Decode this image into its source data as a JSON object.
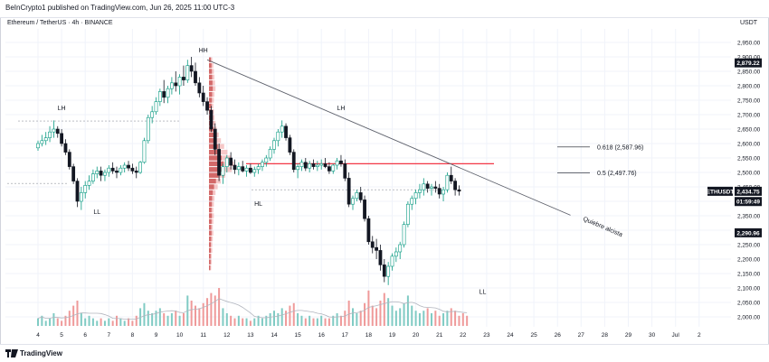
{
  "header": {
    "published_text": "BeInCrypto1 published on TradingView.com, Jun 26, 2025 11:00 UTC-3",
    "symbol_text": "Ethereum / TetherUS · 4h · BINANCE",
    "currency": "USDT"
  },
  "footer": {
    "brand": "TradingView"
  },
  "chart_data": {
    "type": "candlestick",
    "price_axis": {
      "min": 2000,
      "max": 2950,
      "step": 50,
      "ticks": [
        "2,950.00",
        "2,900.00",
        "2,850.00",
        "2,800.00",
        "2,750.00",
        "2,700.00",
        "2,650.00",
        "2,600.00",
        "2,550.00",
        "2,500.00",
        "2,450.00",
        "2,400.00",
        "2,350.00",
        "2,300.00",
        "2,250.00",
        "2,200.00",
        "2,150.00",
        "2,100.00",
        "2,050.00",
        "2,000.00"
      ]
    },
    "time_axis": {
      "labels": [
        {
          "text": "4",
          "idx": 0
        },
        {
          "text": "5",
          "idx": 6
        },
        {
          "text": "6",
          "idx": 12
        },
        {
          "text": "7",
          "idx": 18
        },
        {
          "text": "8",
          "idx": 24
        },
        {
          "text": "9",
          "idx": 30
        },
        {
          "text": "10",
          "idx": 36
        },
        {
          "text": "11",
          "idx": 42
        },
        {
          "text": "12",
          "idx": 48
        },
        {
          "text": "13",
          "idx": 54
        },
        {
          "text": "14",
          "idx": 60
        },
        {
          "text": "15",
          "idx": 66
        },
        {
          "text": "16",
          "idx": 72
        },
        {
          "text": "17",
          "idx": 78
        },
        {
          "text": "18",
          "idx": 84
        },
        {
          "text": "19",
          "idx": 90
        },
        {
          "text": "20",
          "idx": 96
        },
        {
          "text": "21",
          "idx": 102
        },
        {
          "text": "22",
          "idx": 108
        },
        {
          "text": "23",
          "idx": 114
        },
        {
          "text": "24",
          "idx": 120
        },
        {
          "text": "25",
          "idx": 126
        },
        {
          "text": "26",
          "idx": 132
        },
        {
          "text": "27",
          "idx": 138
        },
        {
          "text": "28",
          "idx": 144
        },
        {
          "text": "29",
          "idx": 150
        },
        {
          "text": "30",
          "idx": 156
        },
        {
          "text": "Jul",
          "idx": 162
        },
        {
          "text": "2",
          "idx": 168
        }
      ]
    },
    "price_badges": [
      {
        "text": "2,879.22",
        "price": 2879.22,
        "style": "dark"
      },
      {
        "text": "ETHUSDT",
        "price": 2434.75,
        "style": "dark"
      },
      {
        "text": "2,434.75",
        "price": 2434.75,
        "style": "dark"
      },
      {
        "text": "01:59:49",
        "price": 2418,
        "style": "dark-sub"
      },
      {
        "text": "2,290.96",
        "price": 2290.96,
        "style": "dark"
      }
    ],
    "annotations": [
      {
        "text": "HH",
        "idx": 42,
        "price": 2915
      },
      {
        "text": "LH",
        "idx": 6,
        "price": 2715
      },
      {
        "text": "LL",
        "idx": 15,
        "price": 2357
      },
      {
        "text": "LH",
        "idx": 77,
        "price": 2715
      },
      {
        "text": "HL",
        "idx": 56,
        "price": 2385
      },
      {
        "text": "LL",
        "idx": 113,
        "price": 2080
      }
    ],
    "fib_levels": [
      {
        "text": "0.618 (2,587.96)",
        "price": 2587.96
      },
      {
        "text": "0.5 (2,497.76)",
        "price": 2497.76
      }
    ],
    "trendline": {
      "label": "Quiebre alcista",
      "from": {
        "idx": 43,
        "price": 2890
      },
      "to": {
        "idx": 133,
        "price": 2352
      }
    },
    "hline_red": {
      "price": 2530
    },
    "candles": [
      [
        2585,
        2610,
        2575,
        2600
      ],
      [
        2600,
        2630,
        2590,
        2610
      ],
      [
        2610,
        2640,
        2595,
        2620
      ],
      [
        2620,
        2660,
        2605,
        2640
      ],
      [
        2640,
        2680,
        2620,
        2650
      ],
      [
        2650,
        2660,
        2620,
        2635
      ],
      [
        2635,
        2650,
        2590,
        2600
      ],
      [
        2600,
        2615,
        2560,
        2570
      ],
      [
        2570,
        2580,
        2510,
        2520
      ],
      [
        2520,
        2530,
        2460,
        2470
      ],
      [
        2470,
        2480,
        2380,
        2400
      ],
      [
        2400,
        2450,
        2370,
        2430
      ],
      [
        2430,
        2470,
        2410,
        2455
      ],
      [
        2455,
        2490,
        2440,
        2470
      ],
      [
        2470,
        2510,
        2460,
        2495
      ],
      [
        2495,
        2520,
        2480,
        2505
      ],
      [
        2505,
        2520,
        2470,
        2490
      ],
      [
        2490,
        2510,
        2470,
        2500
      ],
      [
        2500,
        2525,
        2485,
        2515
      ],
      [
        2515,
        2535,
        2495,
        2505
      ],
      [
        2505,
        2520,
        2480,
        2500
      ],
      [
        2500,
        2525,
        2490,
        2515
      ],
      [
        2515,
        2535,
        2500,
        2525
      ],
      [
        2525,
        2540,
        2505,
        2515
      ],
      [
        2515,
        2530,
        2495,
        2505
      ],
      [
        2505,
        2520,
        2480,
        2500
      ],
      [
        2500,
        2540,
        2495,
        2535
      ],
      [
        2535,
        2620,
        2530,
        2610
      ],
      [
        2610,
        2700,
        2600,
        2690
      ],
      [
        2690,
        2730,
        2670,
        2710
      ],
      [
        2710,
        2760,
        2700,
        2745
      ],
      [
        2745,
        2790,
        2730,
        2780
      ],
      [
        2780,
        2820,
        2740,
        2760
      ],
      [
        2760,
        2800,
        2740,
        2790
      ],
      [
        2790,
        2830,
        2770,
        2810
      ],
      [
        2810,
        2850,
        2780,
        2800
      ],
      [
        2800,
        2840,
        2770,
        2830
      ],
      [
        2830,
        2870,
        2800,
        2820
      ],
      [
        2820,
        2890,
        2810,
        2870
      ],
      [
        2870,
        2900,
        2830,
        2850
      ],
      [
        2850,
        2880,
        2800,
        2810
      ],
      [
        2810,
        2830,
        2760,
        2775
      ],
      [
        2775,
        2800,
        2730,
        2745
      ],
      [
        2745,
        2760,
        2700,
        2715
      ],
      [
        2715,
        2730,
        2640,
        2650
      ],
      [
        2650,
        2670,
        2560,
        2580
      ],
      [
        2580,
        2600,
        2470,
        2490
      ],
      [
        2490,
        2530,
        2460,
        2520
      ],
      [
        2520,
        2560,
        2500,
        2550
      ],
      [
        2550,
        2570,
        2510,
        2525
      ],
      [
        2525,
        2545,
        2495,
        2510
      ],
      [
        2510,
        2535,
        2490,
        2520
      ],
      [
        2520,
        2540,
        2500,
        2505
      ],
      [
        2505,
        2525,
        2485,
        2515
      ],
      [
        2515,
        2530,
        2495,
        2500
      ],
      [
        2500,
        2520,
        2485,
        2510
      ],
      [
        2510,
        2530,
        2495,
        2520
      ],
      [
        2520,
        2545,
        2505,
        2535
      ],
      [
        2535,
        2560,
        2520,
        2550
      ],
      [
        2550,
        2590,
        2540,
        2580
      ],
      [
        2580,
        2620,
        2565,
        2610
      ],
      [
        2610,
        2650,
        2590,
        2640
      ],
      [
        2640,
        2680,
        2620,
        2660
      ],
      [
        2660,
        2670,
        2610,
        2620
      ],
      [
        2620,
        2630,
        2560,
        2570
      ],
      [
        2570,
        2580,
        2500,
        2510
      ],
      [
        2510,
        2530,
        2480,
        2520
      ],
      [
        2520,
        2545,
        2505,
        2535
      ],
      [
        2535,
        2550,
        2505,
        2515
      ],
      [
        2515,
        2540,
        2500,
        2530
      ],
      [
        2530,
        2545,
        2510,
        2520
      ],
      [
        2520,
        2540,
        2505,
        2525
      ],
      [
        2525,
        2545,
        2510,
        2530
      ],
      [
        2530,
        2550,
        2515,
        2520
      ],
      [
        2520,
        2535,
        2495,
        2505
      ],
      [
        2505,
        2530,
        2495,
        2525
      ],
      [
        2525,
        2550,
        2510,
        2540
      ],
      [
        2540,
        2560,
        2520,
        2530
      ],
      [
        2530,
        2545,
        2470,
        2480
      ],
      [
        2480,
        2500,
        2380,
        2390
      ],
      [
        2390,
        2420,
        2370,
        2410
      ],
      [
        2410,
        2440,
        2400,
        2430
      ],
      [
        2430,
        2450,
        2395,
        2405
      ],
      [
        2405,
        2420,
        2330,
        2340
      ],
      [
        2340,
        2350,
        2250,
        2260
      ],
      [
        2260,
        2280,
        2220,
        2240
      ],
      [
        2240,
        2270,
        2200,
        2230
      ],
      [
        2230,
        2250,
        2160,
        2180
      ],
      [
        2180,
        2200,
        2120,
        2140
      ],
      [
        2140,
        2190,
        2110,
        2175
      ],
      [
        2175,
        2220,
        2160,
        2210
      ],
      [
        2210,
        2240,
        2190,
        2225
      ],
      [
        2225,
        2260,
        2200,
        2250
      ],
      [
        2250,
        2330,
        2240,
        2320
      ],
      [
        2320,
        2400,
        2310,
        2390
      ],
      [
        2390,
        2420,
        2370,
        2410
      ],
      [
        2410,
        2440,
        2390,
        2430
      ],
      [
        2430,
        2460,
        2410,
        2440
      ],
      [
        2440,
        2480,
        2420,
        2460
      ],
      [
        2460,
        2470,
        2430,
        2445
      ],
      [
        2445,
        2460,
        2420,
        2450
      ],
      [
        2450,
        2470,
        2430,
        2445
      ],
      [
        2445,
        2460,
        2410,
        2425
      ],
      [
        2425,
        2450,
        2400,
        2440
      ],
      [
        2440,
        2500,
        2430,
        2490
      ],
      [
        2490,
        2520,
        2460,
        2470
      ],
      [
        2470,
        2480,
        2420,
        2440
      ],
      [
        2440,
        2455,
        2420,
        2435
      ]
    ],
    "volumes": [
      3,
      4,
      2,
      3,
      5,
      3,
      2,
      4,
      6,
      8,
      10,
      5,
      3,
      4,
      3,
      2,
      3,
      2,
      3,
      2,
      4,
      3,
      2,
      3,
      2,
      4,
      7,
      9,
      6,
      5,
      6,
      7,
      5,
      4,
      5,
      6,
      4,
      5,
      12,
      10,
      8,
      7,
      9,
      11,
      13,
      12,
      15,
      7,
      5,
      4,
      3,
      4,
      3,
      3,
      2,
      3,
      4,
      3,
      4,
      5,
      6,
      5,
      7,
      6,
      8,
      9,
      5,
      4,
      3,
      4,
      3,
      3,
      4,
      3,
      3,
      4,
      5,
      4,
      6,
      10,
      7,
      5,
      6,
      9,
      14,
      8,
      7,
      10,
      13,
      11,
      8,
      6,
      7,
      9,
      12,
      8,
      6,
      5,
      6,
      7,
      5,
      6,
      4,
      5,
      6,
      7,
      6,
      4,
      5,
      4
    ],
    "vp_bins": [
      {
        "price": 2890,
        "w": 6
      },
      {
        "price": 2870,
        "w": 8
      },
      {
        "price": 2850,
        "w": 9
      },
      {
        "price": 2830,
        "w": 10
      },
      {
        "price": 2810,
        "w": 11
      },
      {
        "price": 2790,
        "w": 12
      },
      {
        "price": 2770,
        "w": 10
      },
      {
        "price": 2750,
        "w": 9
      },
      {
        "price": 2730,
        "w": 8
      },
      {
        "price": 2710,
        "w": 9
      },
      {
        "price": 2690,
        "w": 10
      },
      {
        "price": 2670,
        "w": 12
      },
      {
        "price": 2650,
        "w": 14
      },
      {
        "price": 2630,
        "w": 18
      },
      {
        "price": 2610,
        "w": 22
      },
      {
        "price": 2590,
        "w": 28
      },
      {
        "price": 2570,
        "w": 34
      },
      {
        "price": 2550,
        "w": 40
      },
      {
        "price": 2530,
        "w": 46
      },
      {
        "price": 2510,
        "w": 42
      },
      {
        "price": 2490,
        "w": 30
      },
      {
        "price": 2470,
        "w": 22
      },
      {
        "price": 2450,
        "w": 16
      },
      {
        "price": 2430,
        "w": 12
      },
      {
        "price": 2410,
        "w": 10
      },
      {
        "price": 2390,
        "w": 9
      },
      {
        "price": 2370,
        "w": 8
      },
      {
        "price": 2350,
        "w": 9
      },
      {
        "price": 2330,
        "w": 8
      },
      {
        "price": 2310,
        "w": 7
      },
      {
        "price": 2290,
        "w": 8
      },
      {
        "price": 2270,
        "w": 7
      },
      {
        "price": 2250,
        "w": 6
      },
      {
        "price": 2230,
        "w": 6
      },
      {
        "price": 2210,
        "w": 5
      },
      {
        "price": 2190,
        "w": 5
      },
      {
        "price": 2170,
        "w": 4
      }
    ],
    "colors": {
      "up": "#089981",
      "down": "#131722",
      "red_line": "#f23645",
      "trend": "#5d606b",
      "grid": "#f0f3fa",
      "badge": "#131722"
    }
  }
}
